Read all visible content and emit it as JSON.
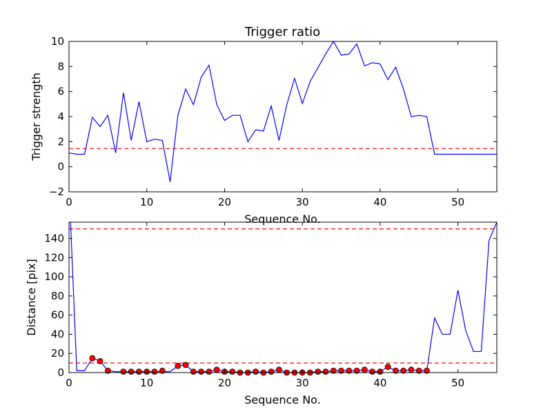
{
  "chart_data": [
    {
      "type": "line",
      "title": "Trigger ratio",
      "xlabel": "Sequence No.",
      "ylabel": "Trigger strength",
      "xlim": [
        0,
        55
      ],
      "ylim": [
        -2,
        10
      ],
      "xticks": [
        0,
        10,
        20,
        30,
        40,
        50
      ],
      "yticks": [
        -2,
        0,
        2,
        4,
        6,
        8,
        10
      ],
      "grid": false,
      "series": [
        {
          "color": "#0000ff",
          "style": "solid",
          "x": [
            0,
            1,
            2,
            3,
            4,
            5,
            6,
            7,
            8,
            9,
            10,
            11,
            12,
            13,
            14,
            15,
            16,
            17,
            18,
            19,
            20,
            21,
            22,
            23,
            24,
            25,
            26,
            27,
            28,
            29,
            30,
            31,
            32,
            33,
            34,
            35,
            36,
            37,
            38,
            39,
            40,
            41,
            42,
            43,
            44,
            45,
            46,
            47,
            48,
            49,
            50,
            51,
            52,
            53,
            54,
            55
          ],
          "y": [
            1.1,
            1.0,
            1.0,
            3.95,
            3.2,
            4.1,
            1.1,
            5.9,
            2.1,
            5.2,
            2.0,
            2.2,
            2.1,
            -1.2,
            4.1,
            6.2,
            4.95,
            7.15,
            8.1,
            4.95,
            3.7,
            4.1,
            4.1,
            2.0,
            2.95,
            2.85,
            4.85,
            2.1,
            4.95,
            7.05,
            5.05,
            6.8,
            7.9,
            9.0,
            10.0,
            8.9,
            9.0,
            9.8,
            8.05,
            8.3,
            8.2,
            6.95,
            7.95,
            6.2,
            4.0,
            4.1,
            4.0,
            1.0,
            1.0,
            1.0,
            1.0,
            1.0,
            1.0,
            1.0,
            1.0,
            1.0
          ]
        }
      ],
      "hlines": [
        {
          "y": 1.45,
          "color": "#ff0000",
          "style": "dashed"
        }
      ]
    },
    {
      "type": "line",
      "xlabel": "Sequence No.",
      "ylabel": "Distance [pix]",
      "xlim": [
        0,
        55
      ],
      "ylim": [
        0,
        157
      ],
      "xticks": [
        0,
        10,
        20,
        30,
        40,
        50
      ],
      "yticks": [
        0,
        20,
        40,
        60,
        80,
        100,
        120,
        140
      ],
      "grid": false,
      "series": [
        {
          "color": "#0000ff",
          "style": "solid",
          "x": [
            0.2,
            1,
            2,
            3,
            4,
            5,
            6,
            7,
            8,
            9,
            10,
            11,
            12,
            13,
            14,
            15,
            16,
            17,
            18,
            19,
            20,
            21,
            22,
            23,
            24,
            25,
            26,
            27,
            28,
            29,
            30,
            31,
            32,
            33,
            34,
            35,
            36,
            37,
            38,
            39,
            40,
            41,
            42,
            43,
            44,
            45,
            46,
            47,
            48,
            49,
            50,
            51,
            52,
            53,
            54,
            55
          ],
          "y": [
            157,
            2,
            2,
            15,
            12,
            2,
            1,
            1,
            1,
            1,
            1,
            1,
            1,
            1,
            7,
            8,
            1,
            1,
            1,
            3,
            1,
            1,
            0,
            0,
            1,
            0,
            1,
            3,
            0,
            0,
            0,
            0,
            1,
            1,
            2,
            2,
            2,
            2,
            3,
            1,
            1,
            6,
            2,
            2,
            3,
            2,
            2,
            57,
            40,
            40,
            86,
            44,
            22,
            22,
            138,
            157
          ]
        }
      ],
      "markers": {
        "color": "#ff0000",
        "x": [
          3,
          4,
          5,
          7,
          8,
          9,
          10,
          11,
          12,
          14,
          15,
          16,
          17,
          18,
          19,
          20,
          21,
          22,
          23,
          24,
          25,
          26,
          27,
          28,
          29,
          30,
          31,
          32,
          33,
          34,
          35,
          36,
          37,
          38,
          39,
          40,
          41,
          42,
          43,
          44,
          45,
          46
        ],
        "y": [
          15,
          12,
          2,
          1,
          1,
          1,
          1,
          1,
          2,
          7,
          8,
          1,
          1,
          1,
          3,
          1,
          1,
          0,
          0,
          1,
          0,
          1,
          3,
          0,
          0,
          0,
          0,
          1,
          1,
          2,
          2,
          2,
          2,
          3,
          1,
          1,
          6,
          2,
          2,
          3,
          2,
          2
        ]
      },
      "hlines": [
        {
          "y": 150,
          "color": "#ff0000",
          "style": "dashed"
        },
        {
          "y": 10,
          "color": "#ff0000",
          "style": "dashed"
        }
      ]
    }
  ]
}
